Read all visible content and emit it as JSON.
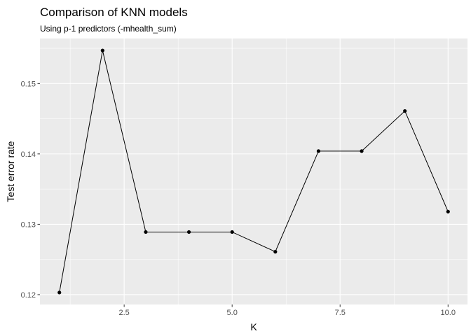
{
  "chart_data": {
    "type": "line",
    "title": "Comparison of KNN models",
    "subtitle": "Using p-1 predictors (-mhealth_sum)",
    "xlabel": "K",
    "ylabel": "Test error rate",
    "x": [
      1,
      2,
      3,
      4,
      5,
      6,
      7,
      8,
      9,
      10
    ],
    "y": [
      0.1203,
      0.1547,
      0.1289,
      0.1289,
      0.1289,
      0.1261,
      0.1404,
      0.1404,
      0.1461,
      0.1318
    ],
    "xlim": [
      0.55,
      10.45
    ],
    "ylim": [
      0.1186,
      0.1564
    ],
    "x_ticks": [
      2.5,
      5.0,
      7.5,
      10.0
    ],
    "x_tick_labels": [
      "2.5",
      "5.0",
      "7.5",
      "10.0"
    ],
    "y_ticks": [
      0.12,
      0.13,
      0.14,
      0.15
    ],
    "y_tick_labels": [
      "0.12",
      "0.13",
      "0.14",
      "0.15"
    ],
    "grid": true,
    "legend": "none",
    "colors": {
      "panel": "#ebebeb",
      "grid": "#ffffff",
      "line": "#000000",
      "point": "#000000"
    }
  }
}
